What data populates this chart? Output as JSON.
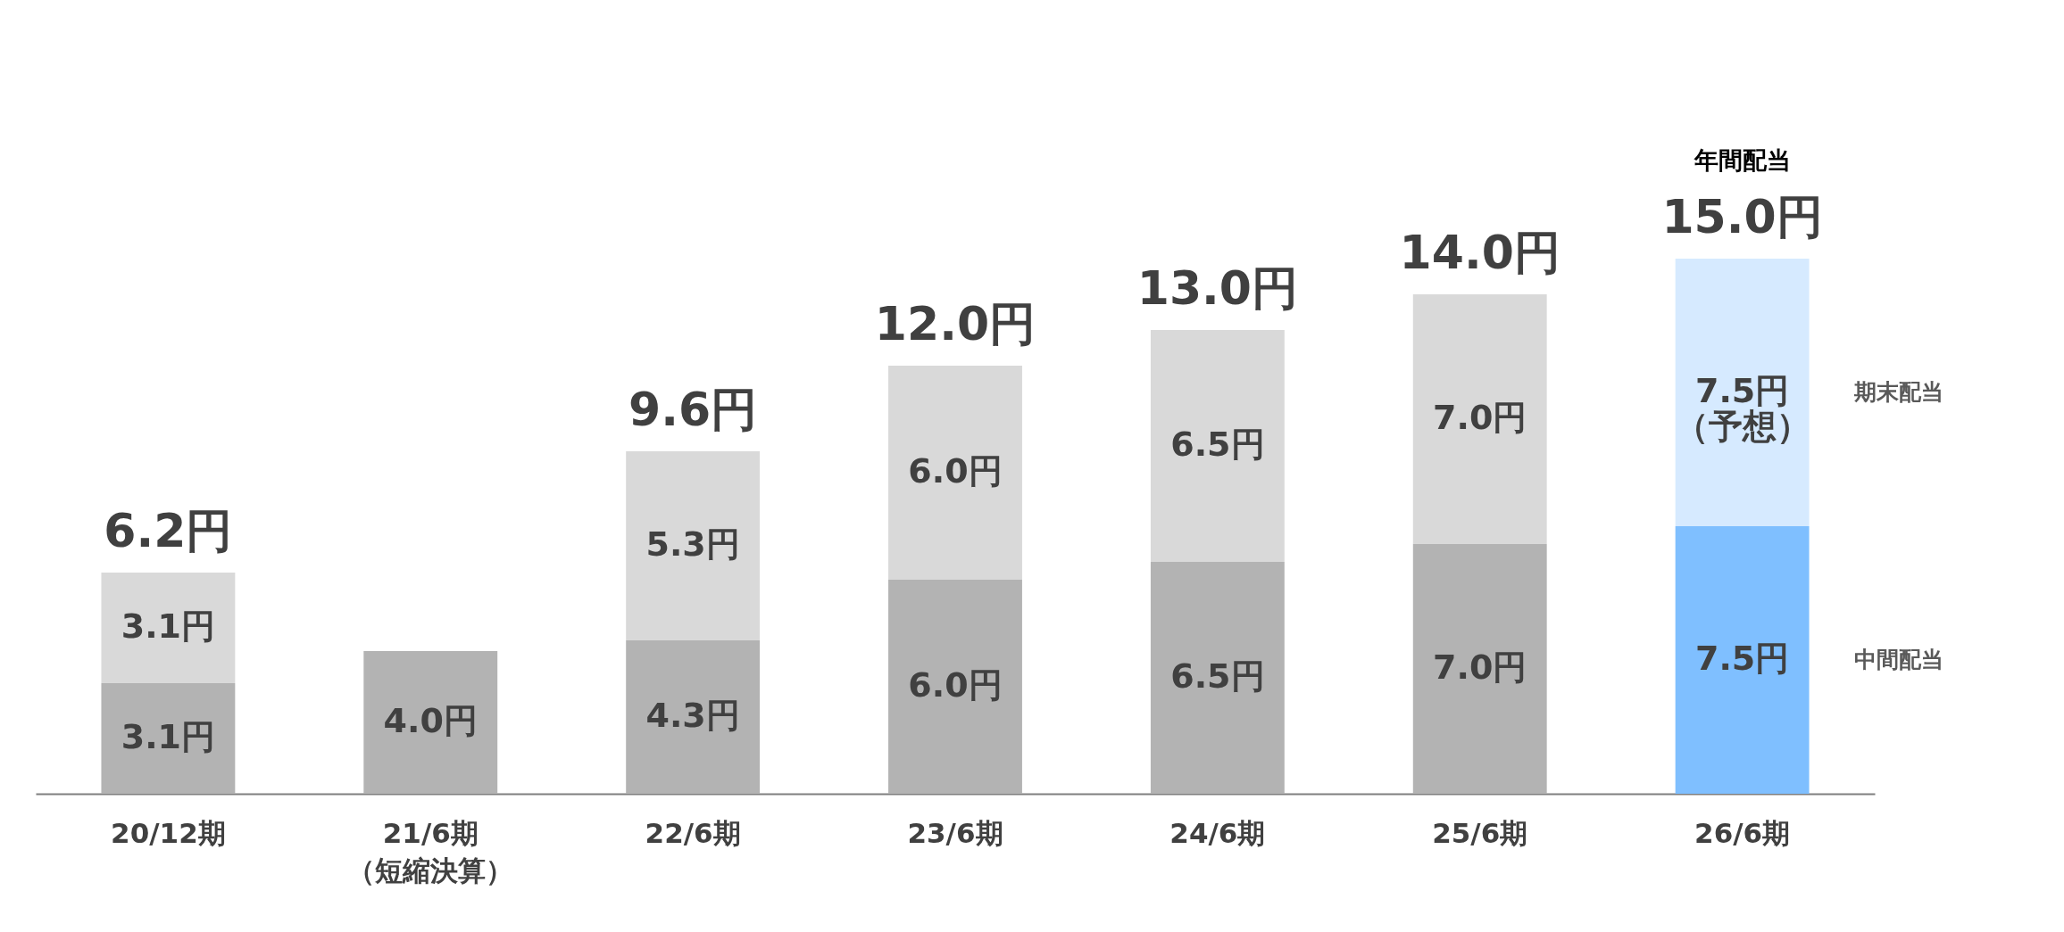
{
  "chart_data": {
    "type": "bar",
    "stacked": true,
    "categories": [
      "20/12期",
      "21/6期（短縮決算）",
      "22/6期",
      "23/6期",
      "24/6期",
      "25/6期",
      "26/6期"
    ],
    "series": [
      {
        "name": "中間配当",
        "colors": [
          "#b3b3b3",
          "#b3b3b3",
          "#b3b3b3",
          "#b3b3b3",
          "#b3b3b3",
          "#b3b3b3",
          "#7fbfff"
        ],
        "values": [
          3.1,
          4.0,
          4.3,
          6.0,
          6.5,
          7.0,
          7.5
        ],
        "value_labels": [
          "3.1円",
          "4.0円",
          "4.3円",
          "6.0円",
          "6.5円",
          "7.0円",
          "7.5円"
        ]
      },
      {
        "name": "期末配当",
        "colors": [
          "#d9d9d9",
          null,
          "#d9d9d9",
          "#d9d9d9",
          "#d9d9d9",
          "#d9d9d9",
          "#d6eaff"
        ],
        "values": [
          3.1,
          null,
          5.3,
          6.0,
          6.5,
          7.0,
          7.5
        ],
        "value_labels": [
          "3.1円",
          null,
          "5.3円",
          "6.0円",
          "6.5円",
          "7.0円",
          "7.5円（予想）"
        ]
      }
    ],
    "totals": [
      "6.2円",
      null,
      "9.6円",
      "12.0円",
      "13.0円",
      "14.0円",
      "15.0円"
    ],
    "annotations": [
      "年間配当"
    ],
    "grid": false
  }
}
